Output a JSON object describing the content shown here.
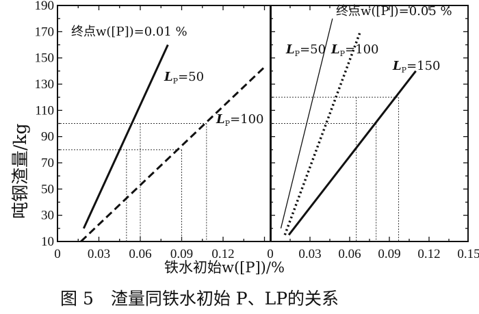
{
  "chart_data": [
    {
      "type": "line",
      "panel": "left",
      "annotation": "终点w([P])=0.01 %",
      "xlim": [
        0,
        0.15
      ],
      "ylim": [
        10,
        190
      ],
      "xticks": [
        "0",
        "0.03",
        "0.06",
        "0.09",
        "0.12"
      ],
      "yticks": [
        "10",
        "30",
        "50",
        "70",
        "90",
        "110",
        "130",
        "150",
        "170",
        "190"
      ],
      "series": [
        {
          "name": "LP=50",
          "label_main": "L",
          "label_sub": "P",
          "label_rest": "=50",
          "style": "solid",
          "x": [
            0.019,
            0.08
          ],
          "y": [
            20,
            160
          ]
        },
        {
          "name": "LP=100",
          "label_main": "L",
          "label_sub": "P",
          "label_rest": "=100",
          "style": "dashed",
          "x": [
            0.017,
            0.15
          ],
          "y": [
            10,
            143
          ]
        }
      ],
      "guides": [
        {
          "y": 100,
          "x": [
            0.06,
            0.108
          ]
        },
        {
          "y": 80,
          "x": [
            0.05,
            0.09
          ]
        }
      ]
    },
    {
      "type": "line",
      "panel": "right",
      "annotation": "终点w([P])=0.05 %",
      "xlim": [
        0,
        0.15
      ],
      "ylim": [
        10,
        190
      ],
      "xticks": [
        "0",
        "0.03",
        "0.06",
        "0.09",
        "0.12",
        "0.15"
      ],
      "series": [
        {
          "name": "LP=50",
          "label_main": "L",
          "label_sub": "P",
          "label_rest": "=50",
          "style": "thin",
          "x": [
            0.008,
            0.047
          ],
          "y": [
            20,
            180
          ]
        },
        {
          "name": "LP=100",
          "label_main": "L",
          "label_sub": "P",
          "label_rest": "=100",
          "style": "dotted",
          "x": [
            0.011,
            0.068
          ],
          "y": [
            15,
            170
          ]
        },
        {
          "name": "LP=150",
          "label_main": "L",
          "label_sub": "P",
          "label_rest": "=150",
          "style": "solid",
          "x": [
            0.014,
            0.11
          ],
          "y": [
            15,
            140
          ]
        }
      ],
      "guides": [
        {
          "y": 120,
          "x": [
            0.065,
            0.097
          ]
        },
        {
          "y": 100,
          "x": [
            0.08
          ]
        }
      ]
    }
  ],
  "xlabel": "铁水初始w([P])/%",
  "ylabel": "吨钢渣量/kg",
  "caption": "图 5　渣量同铁水初始 P、LP的关系"
}
